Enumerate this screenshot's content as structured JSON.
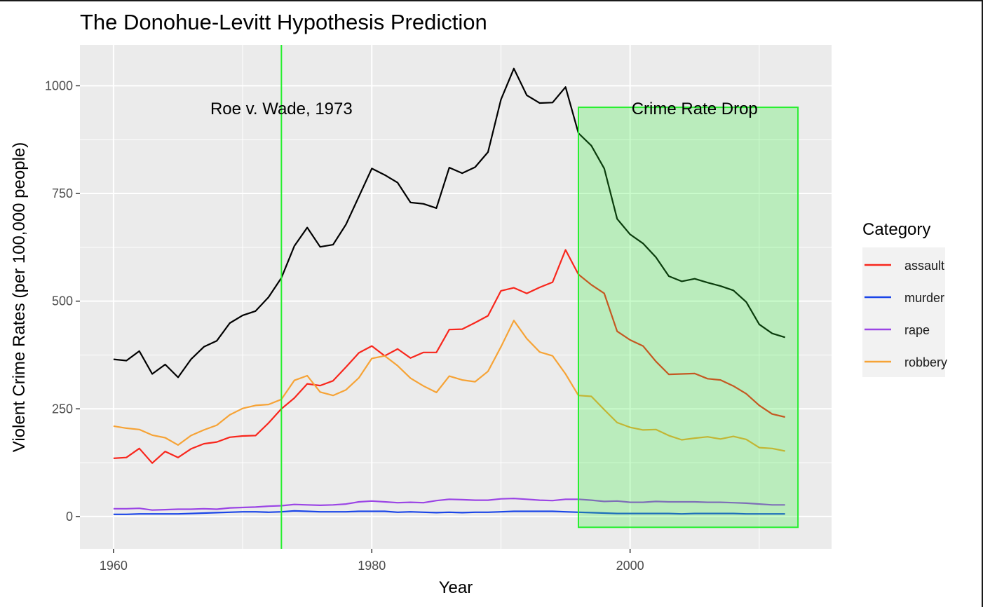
{
  "chart_data": {
    "type": "line",
    "title": "The  Donohue-Levitt Hypothesis Prediction",
    "xlabel": "Year",
    "ylabel": "Violent Crime Rates (per 100,000 people)",
    "xlim": [
      1957.4,
      2015.6
    ],
    "ylim": [
      -75,
      1095
    ],
    "x_ticks": [
      "1960",
      "1980",
      "2000"
    ],
    "y_ticks": [
      "0",
      "250",
      "500",
      "750",
      "1000"
    ],
    "x_tick_values": [
      1960,
      1980,
      2000
    ],
    "y_tick_values": [
      0,
      250,
      500,
      750,
      1000
    ],
    "grid": true,
    "legend_title": "Category",
    "legend_position": "right",
    "x": [
      1960,
      1961,
      1962,
      1963,
      1964,
      1965,
      1966,
      1967,
      1968,
      1969,
      1970,
      1971,
      1972,
      1973,
      1974,
      1975,
      1976,
      1977,
      1978,
      1979,
      1980,
      1981,
      1982,
      1983,
      1984,
      1985,
      1986,
      1987,
      1988,
      1989,
      1990,
      1991,
      1992,
      1993,
      1994,
      1995,
      1996,
      1997,
      1998,
      1999,
      2000,
      2001,
      2002,
      2003,
      2004,
      2005,
      2006,
      2007,
      2008,
      2009,
      2010,
      2011,
      2012
    ],
    "total": {
      "color": "#000000",
      "values": [
        365,
        362,
        384,
        331,
        353,
        323,
        365,
        394,
        408,
        449,
        467,
        477,
        509,
        554,
        628,
        671,
        626,
        631,
        678,
        743,
        808,
        793,
        775,
        729,
        726,
        716,
        810,
        797,
        811,
        846,
        968,
        1040,
        978,
        960,
        961,
        997,
        890,
        861,
        808,
        691,
        655,
        634,
        602,
        558,
        546,
        552,
        543,
        535,
        525,
        498,
        446,
        425,
        416
      ]
    },
    "series": [
      {
        "name": "assault",
        "color": "#f8261c",
        "values": [
          135,
          137,
          158,
          124,
          151,
          137,
          157,
          169,
          173,
          184,
          187,
          188,
          217,
          250,
          275,
          308,
          304,
          315,
          347,
          380,
          396,
          373,
          389,
          368,
          381,
          381,
          434,
          435,
          450,
          466,
          524,
          531,
          518,
          532,
          544,
          619,
          562,
          538,
          518,
          430,
          410,
          396,
          360,
          330,
          331,
          332,
          320,
          317,
          303,
          285,
          258,
          238,
          231
        ]
      },
      {
        "name": "murder",
        "color": "#1a45e8",
        "values": [
          5,
          5,
          6,
          6,
          6,
          6,
          7,
          8,
          9,
          10,
          11,
          11,
          10,
          11,
          13,
          12,
          11,
          11,
          11,
          12,
          12,
          12,
          10,
          11,
          10,
          9,
          10,
          9,
          10,
          10,
          11,
          12,
          12,
          12,
          12,
          11,
          10,
          9,
          8,
          7,
          7,
          7,
          7,
          7,
          6,
          7,
          7,
          7,
          7,
          6,
          6,
          6,
          6
        ]
      },
      {
        "name": "rape",
        "color": "#9b45e5",
        "values": [
          18,
          18,
          19,
          15,
          16,
          17,
          17,
          18,
          17,
          20,
          21,
          22,
          24,
          25,
          28,
          27,
          26,
          27,
          29,
          34,
          36,
          34,
          32,
          33,
          32,
          37,
          40,
          39,
          38,
          38,
          41,
          42,
          40,
          38,
          37,
          40,
          40,
          38,
          35,
          36,
          33,
          33,
          35,
          34,
          34,
          34,
          33,
          33,
          32,
          31,
          29,
          27,
          27
        ]
      },
      {
        "name": "robbery",
        "color": "#f6a336",
        "values": [
          210,
          205,
          202,
          189,
          183,
          166,
          188,
          201,
          212,
          236,
          251,
          258,
          260,
          272,
          316,
          327,
          289,
          281,
          294,
          322,
          367,
          373,
          350,
          321,
          303,
          288,
          326,
          317,
          313,
          337,
          394,
          455,
          413,
          382,
          373,
          331,
          281,
          279,
          248,
          218,
          207,
          201,
          202,
          188,
          178,
          182,
          185,
          180,
          186,
          179,
          160,
          158,
          152
        ]
      }
    ],
    "annotations": [
      {
        "label": "Roe v. Wade, 1973",
        "x": 1973,
        "y": 950,
        "line_x": 1973,
        "line_color": "#27ef2f"
      },
      {
        "label": "Crime Rate Drop",
        "x": 2005,
        "y": 950,
        "rect_x": [
          1996,
          2013
        ],
        "rect_y": [
          -25,
          950
        ],
        "fill": "#27ef2f",
        "fill_opacity": 0.25,
        "stroke": "#27ef2f"
      }
    ]
  }
}
